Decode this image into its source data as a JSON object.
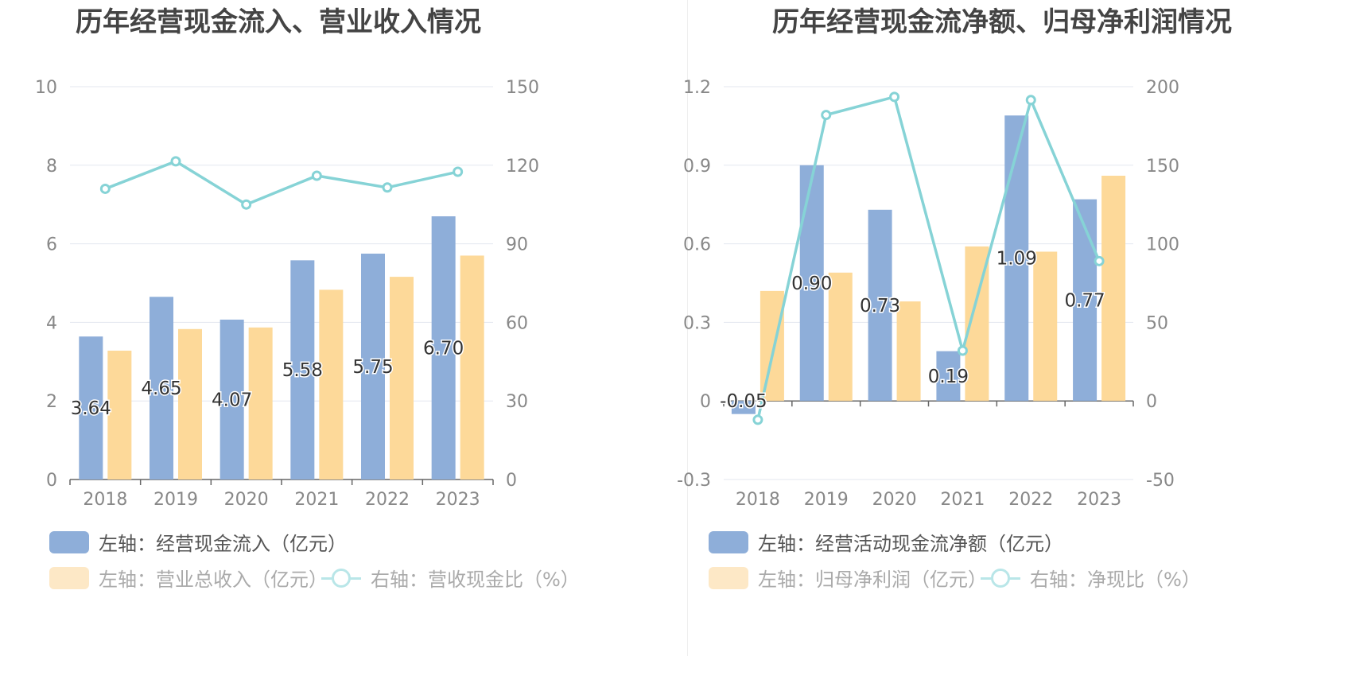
{
  "chart_data": [
    {
      "type": "bar",
      "title": "历年经营现金流入、营业收入情况",
      "categories": [
        "2018",
        "2019",
        "2020",
        "2021",
        "2022",
        "2023"
      ],
      "left_axis": {
        "min": 0,
        "max": 10,
        "ticks": [
          "0",
          "2",
          "4",
          "6",
          "8",
          "10"
        ]
      },
      "right_axis": {
        "min": 0,
        "max": 150,
        "ticks": [
          "0",
          "30",
          "60",
          "90",
          "120",
          "150"
        ]
      },
      "series": [
        {
          "name": "左轴：经营现金流入（亿元）",
          "type": "bar",
          "axis": "left",
          "color": "#8eaed9",
          "values": [
            3.64,
            4.65,
            4.07,
            5.58,
            5.75,
            6.7
          ],
          "labels": [
            "3.64",
            "4.65",
            "4.07",
            "5.58",
            "5.75",
            "6.70"
          ]
        },
        {
          "name": "左轴：营业总收入（亿元）",
          "type": "bar",
          "axis": "left",
          "color": "#fdd999",
          "values": [
            3.28,
            3.83,
            3.87,
            4.83,
            5.16,
            5.7
          ]
        },
        {
          "name": "右轴：营收现金比（%）",
          "type": "line",
          "axis": "right",
          "color": "#86d3d6",
          "values": [
            111,
            121.5,
            105,
            116,
            111.5,
            117.5
          ]
        }
      ],
      "legend": [
        {
          "label": "左轴：经营现金流入（亿元）",
          "kind": "bar",
          "color": "#8eaed9",
          "active": true
        },
        {
          "label": "左轴：营业总收入（亿元）",
          "kind": "bar",
          "color": "#fde8c6",
          "active": false
        },
        {
          "label": "右轴：营收现金比（%）",
          "kind": "line",
          "color": "#b9e6e8",
          "active": false
        }
      ],
      "grid": true,
      "legend_placement": "bottom"
    },
    {
      "type": "bar",
      "title": "历年经营现金流净额、归母净利润情况",
      "categories": [
        "2018",
        "2019",
        "2020",
        "2021",
        "2022",
        "2023"
      ],
      "left_axis": {
        "min": -0.3,
        "max": 1.2,
        "ticks": [
          "-0.3",
          "0",
          "0.3",
          "0.6",
          "0.9",
          "1.2"
        ]
      },
      "right_axis": {
        "min": -50,
        "max": 200,
        "ticks": [
          "-50",
          "0",
          "50",
          "100",
          "150",
          "200"
        ]
      },
      "series": [
        {
          "name": "左轴：经营活动现金流净额（亿元）",
          "type": "bar",
          "axis": "left",
          "color": "#8eaed9",
          "values": [
            -0.05,
            0.9,
            0.73,
            0.19,
            1.09,
            0.77
          ],
          "labels": [
            "-0.05",
            "0.90",
            "0.73",
            "0.19",
            "1.09",
            "0.77"
          ]
        },
        {
          "name": "左轴：归母净利润（亿元）",
          "type": "bar",
          "axis": "left",
          "color": "#fdd999",
          "values": [
            0.42,
            0.49,
            0.38,
            0.59,
            0.57,
            0.86
          ]
        },
        {
          "name": "右轴：净现比（%）",
          "type": "line",
          "axis": "right",
          "color": "#86d3d6",
          "values": [
            -12,
            182,
            193.5,
            32,
            191.5,
            89
          ]
        }
      ],
      "legend": [
        {
          "label": "左轴：经营活动现金流净额（亿元）",
          "kind": "bar",
          "color": "#8eaed9",
          "active": true
        },
        {
          "label": "左轴：归母净利润（亿元）",
          "kind": "bar",
          "color": "#fde8c6",
          "active": false
        },
        {
          "label": "右轴：净现比（%）",
          "kind": "line",
          "color": "#b9e6e8",
          "active": false
        }
      ],
      "grid": true,
      "legend_placement": "bottom"
    }
  ]
}
